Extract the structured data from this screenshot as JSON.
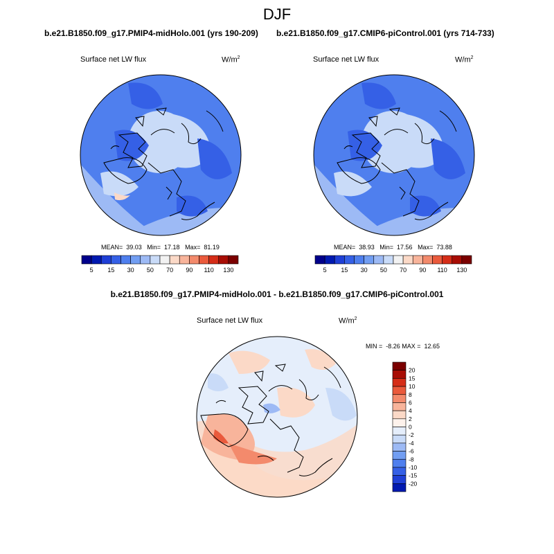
{
  "title": "DJF",
  "panels": [
    {
      "case": "b.e21.B1850.f09_g17.PMIP4-midHolo.001 (yrs 190-209)",
      "variable": "Surface net LW flux",
      "units_base": "W/m",
      "units_exp": "2",
      "stats_text": "MEAN=  39.03   Min=  17.18   Max=  81.19"
    },
    {
      "case": "b.e21.B1850.f09_g17.CMIP6-piControl.001 (yrs 714-733)",
      "variable": "Surface net LW flux",
      "units_base": "W/m",
      "units_exp": "2",
      "stats_text": "MEAN=  38.93   Min=  17.56   Max=  73.88"
    }
  ],
  "diff": {
    "title": "b.e21.B1850.f09_g17.PMIP4-midHolo.001 - b.e21.B1850.f09_g17.CMIP6-piControl.001",
    "variable": "Surface net LW flux",
    "units_base": "W/m",
    "units_exp": "2",
    "stats_text": "MIN =  -8.26 MAX =  12.65"
  },
  "colorbars": {
    "absolute": {
      "levels": [
        "5",
        "15",
        "30",
        "50",
        "70",
        "90",
        "110",
        "130"
      ],
      "colors": [
        "#00008b",
        "#0019b0",
        "#1f3fd6",
        "#3560e6",
        "#4f7fee",
        "#729ef2",
        "#9dbaf5",
        "#c9dbf8",
        "#f2f2f2",
        "#fbd9c7",
        "#f8b49b",
        "#f38a6c",
        "#ea5a3c",
        "#d52d18",
        "#a80d05",
        "#7b0000"
      ]
    },
    "difference": {
      "levels": [
        "20",
        "15",
        "10",
        "8",
        "6",
        "4",
        "2",
        "0",
        "-2",
        "-4",
        "-6",
        "-8",
        "-10",
        "-15",
        "-20"
      ],
      "colors": [
        "#7b0000",
        "#a80d05",
        "#d52d18",
        "#ea5a3c",
        "#f38a6c",
        "#f8b49b",
        "#fbd9c7",
        "#fdf2ec",
        "#e5eefb",
        "#c9dbf8",
        "#9dbaf5",
        "#729ef2",
        "#4f7fee",
        "#3560e6",
        "#1f3fd6",
        "#0019b0"
      ]
    }
  }
}
